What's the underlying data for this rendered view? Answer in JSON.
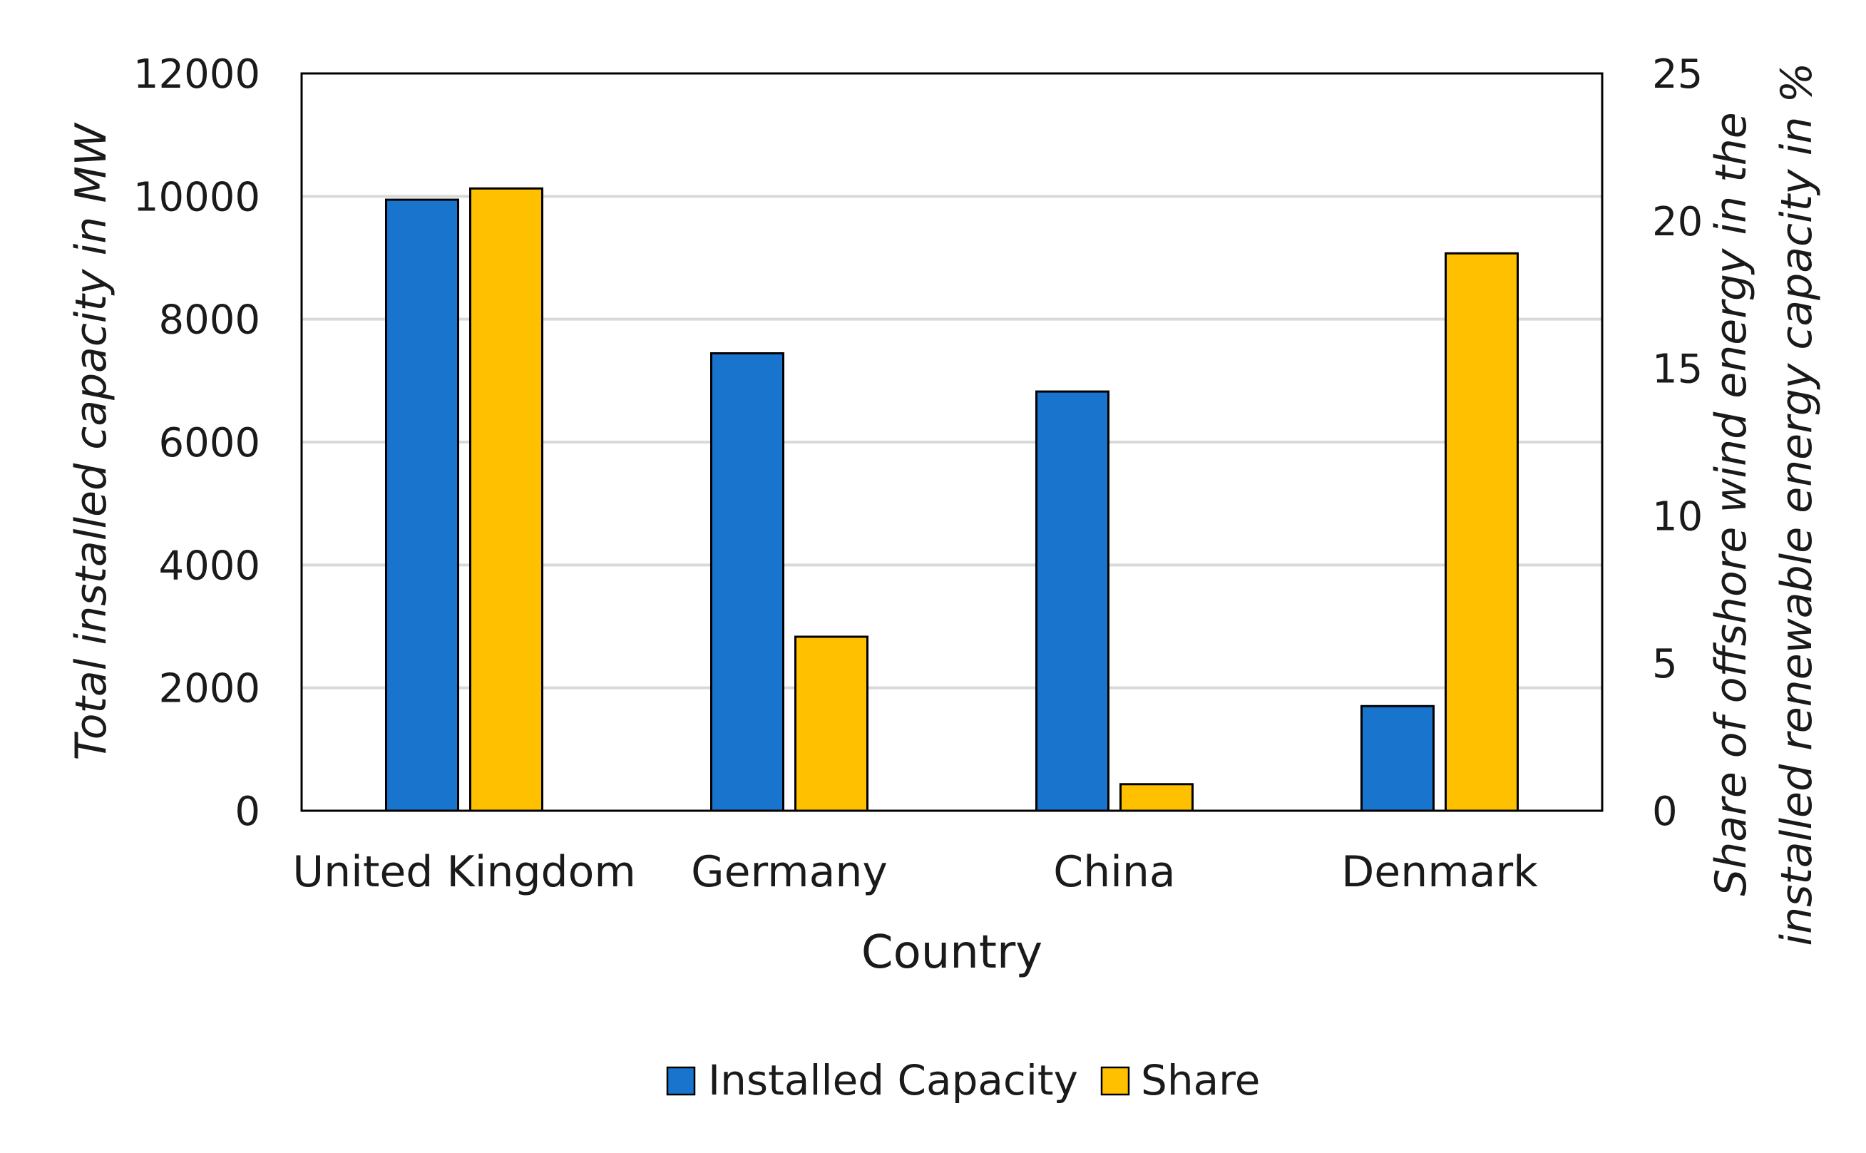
{
  "chart_data": {
    "type": "bar",
    "title": "",
    "xlabel": "Country",
    "ylabel": "Total installed capacity in MW",
    "y2label": [
      "Share of offshore wind energy in the",
      "installed renewable energy capacity in %"
    ],
    "categories": [
      "United Kingdom",
      "Germany",
      "China",
      "Denmark"
    ],
    "series": [
      {
        "name": "Installed Capacity",
        "axis": "left",
        "color": "#1874CD",
        "values": [
          9945,
          7445,
          6823,
          1703
        ]
      },
      {
        "name": "Share",
        "axis": "right",
        "color": "#FFC000",
        "values": [
          21.1,
          5.9,
          0.9,
          18.9
        ]
      }
    ],
    "ylim": [
      0,
      12000
    ],
    "y2lim": [
      0,
      25
    ],
    "yticks": [
      0,
      2000,
      4000,
      6000,
      8000,
      10000,
      12000
    ],
    "y2ticks": [
      0,
      5,
      10,
      15,
      20,
      25
    ],
    "grid": true,
    "legend_position": "bottom-center"
  }
}
